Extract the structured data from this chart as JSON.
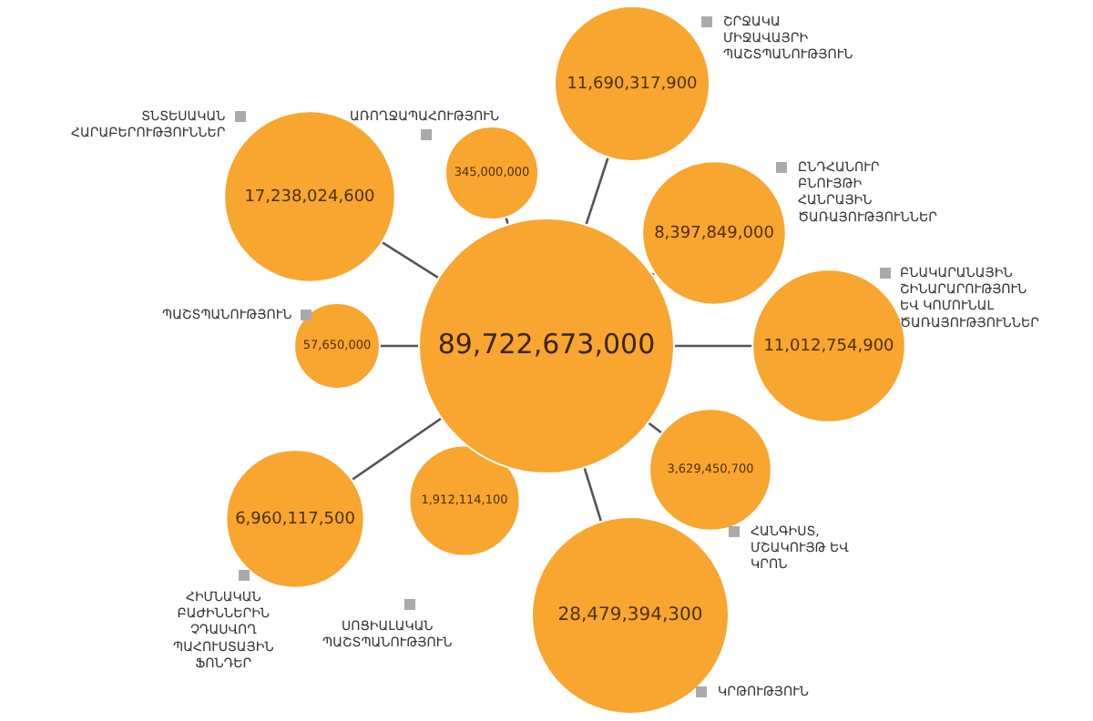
{
  "chart_data": {
    "type": "other",
    "categories": [
      "ԱՌՈՂՋԱՊԱՀՈՒԹՅՈՒՆ",
      "ՇՐՋԱԿԱ ՄԻՋԱՎԱՅՐԻ ՊԱՇՏՊԱՆՈՒԹՅՈՒՆ",
      "ԸՆԴՀԱՆՈՒՐ ԲՆՈՒՅԹԻ ՀԱՆՐԱՅԻՆ ԾԱՌԱՅՈՒԹՅՈՒՆՆԵՐ",
      "ԲՆԱԿԱՐԱՆԱՅԻՆ ՇԻՆԱՐԱՐՈՒԹՅՈՒՆ ԵՎ ԿՈՄՈՒՆԱԼ ԾԱՌԱՅՈՒԹՅՈՒՆՆԵՐ",
      "ՀԱՆԳԻՍՏ, ՄՇԱԿՈՒՅԹ ԵՎ ԿՐՈՆ",
      "ԿՐԹՈՒԹՅՈՒՆ",
      "ՍՈՑԻԱԼԱԿԱՆ ՊԱՇՏՊԱՆՈՒԹՅՈՒՆ",
      "ՀԻՄՆԱԿԱՆ ԲԱԺԻՆՆԵՐԻՆ ՉԴԱՍՎՈՂ ՊԱՀՈՒՍՏԱՅԻՆ ՖՈՆԴԵՐ",
      "ՊԱՇՏՊԱՆՈՒԹՅՈՒՆ",
      "ՏՆՏԵՍԱԿԱՆ ՀԱՐԱԲԵՐՈՒԹՅՈՒՆՆԵՐ"
    ],
    "values": [
      345000000,
      11690317900,
      8397849000,
      11012754900,
      3629450700,
      28479394300,
      1912114100,
      6960117500,
      57650000,
      17238024600
    ],
    "value_labels": [
      "345,000,000",
      "11,690,317,900",
      "8,397,849,000",
      "11,012,754,900",
      "3,629,450,700",
      "28,479,394,300",
      "1,912,114,100",
      "6,960,117,500",
      "57,650,000",
      "17,238,024,600"
    ],
    "totals": [
      "89,722,673,000"
    ],
    "color": "#f8a630"
  }
}
